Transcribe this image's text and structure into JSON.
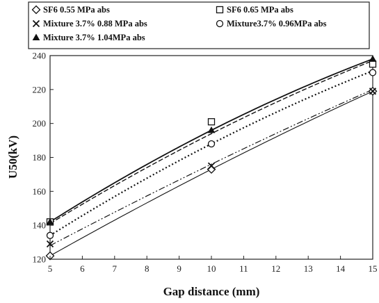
{
  "chart_data": {
    "type": "scatter",
    "xlabel": "Gap distance (mm)",
    "ylabel": "U50(kV)",
    "xlim": [
      5,
      15
    ],
    "ylim": [
      120,
      240
    ],
    "xticks": [
      "5",
      "6",
      "7",
      "8",
      "9",
      "10",
      "11",
      "12",
      "13",
      "14",
      "15"
    ],
    "yticks": [
      "120",
      "140",
      "160",
      "180",
      "200",
      "220",
      "240"
    ],
    "grid": false,
    "legend_position": "top",
    "series": [
      {
        "name": "SF6 0.55 MPa abs",
        "marker": "diamond",
        "line": "solid-thin",
        "color": "#111111",
        "x": [
          5,
          10,
          15
        ],
        "y": [
          122,
          173,
          219
        ],
        "fit": [
          122,
          173,
          219
        ]
      },
      {
        "name": "SF6 0.65 MPa abs",
        "marker": "square",
        "line": "dashed",
        "color": "#111111",
        "x": [
          5,
          10,
          15
        ],
        "y": [
          142,
          201,
          235
        ],
        "fit": [
          141,
          194,
          237
        ]
      },
      {
        "name": "Mixture 3.7% 0.88 MPa abs",
        "marker": "x",
        "line": "dash-dot-dot",
        "color": "#111111",
        "x": [
          5,
          10,
          15
        ],
        "y": [
          129,
          175,
          219
        ],
        "fit": [
          128,
          176,
          220
        ]
      },
      {
        "name": "Mixture3.7% 0.96MPa abs",
        "marker": "circle",
        "line": "dotted",
        "color": "#111111",
        "x": [
          5,
          10,
          15
        ],
        "y": [
          134,
          188,
          230
        ],
        "fit": [
          134,
          188,
          231
        ]
      },
      {
        "name": "Mixture 3.7% 1.04MPa abs",
        "marker": "triangle",
        "line": "solid",
        "color": "#111111",
        "x": [
          5,
          10,
          15
        ],
        "y": [
          142,
          196,
          238
        ],
        "fit": [
          142,
          196,
          238
        ]
      }
    ]
  }
}
